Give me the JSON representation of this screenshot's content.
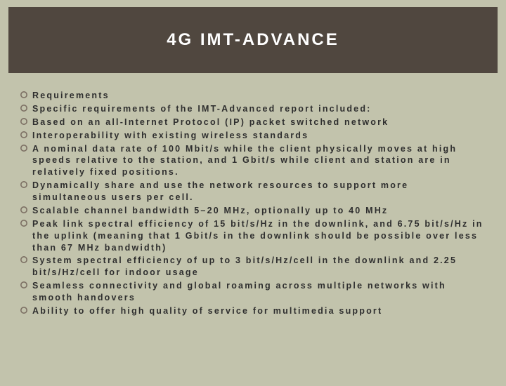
{
  "slide": {
    "title": "4G IMT-ADVANCE",
    "background_color": "#c2c3ac",
    "header_bg": "#50473f",
    "title_color": "#ffffff",
    "title_fontsize": 24,
    "bullet_stroke": "#7c6f63",
    "text_color": "#2e2e2e",
    "text_fontsize": 12.5,
    "letter_spacing": 2.2,
    "bullets": [
      "Requirements",
      "Specific requirements of the IMT-Advanced report included:",
      "Based on an all-Internet Protocol (IP) packet switched network",
      "Interoperability with existing wireless standards",
      "A nominal data rate of 100 Mbit/s while the client physically moves at high speeds relative to the station, and 1 Gbit/s while client and station are in relatively fixed positions.",
      "Dynamically share and use the network resources to support more simultaneous users per cell.",
      "Scalable channel bandwidth 5–20 MHz, optionally up to 40 MHz",
      "Peak link spectral efficiency of 15 bit/s/Hz in the downlink, and 6.75 bit/s/Hz in the uplink (meaning that 1 Gbit/s in the downlink should be possible over less than 67 MHz bandwidth)",
      "System spectral efficiency of up to 3 bit/s/Hz/cell in the downlink and 2.25 bit/s/Hz/cell for indoor usage",
      "Seamless connectivity and global roaming across multiple networks with smooth handovers",
      "Ability to offer high quality of service for multimedia support"
    ]
  }
}
